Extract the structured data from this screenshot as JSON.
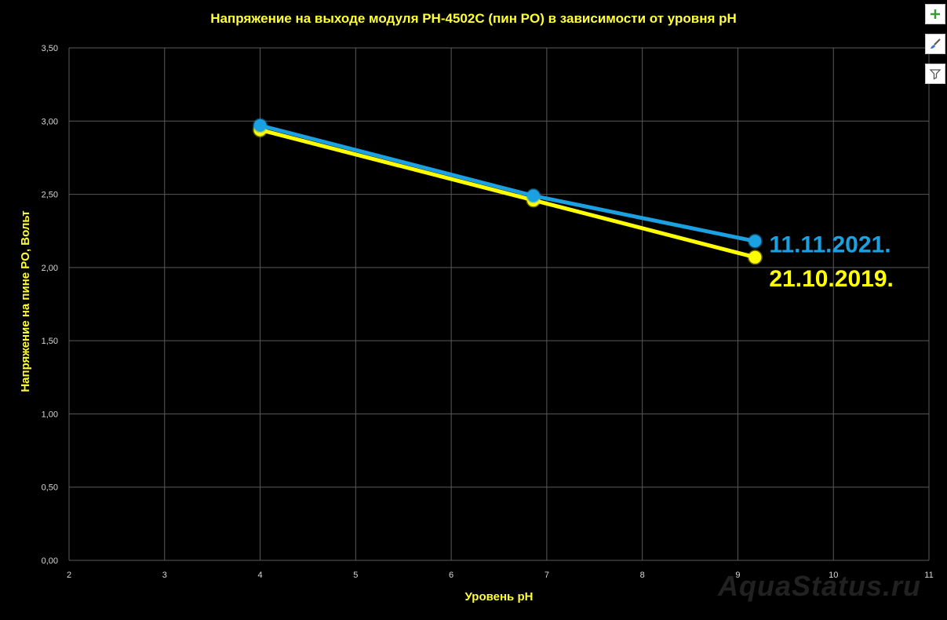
{
  "chart_data": {
    "type": "line",
    "title": "Напряжение на выходе модуля PH-4502C (пин PO) в зависимости от уровня  pH",
    "xlabel": "Уровень pH",
    "ylabel": "Напряжение на пине PO, Вольт",
    "xlim": [
      2,
      11
    ],
    "ylim": [
      0,
      3.5
    ],
    "x_ticks": [
      "2",
      "3",
      "4",
      "5",
      "6",
      "7",
      "8",
      "9",
      "10",
      "11"
    ],
    "y_ticks": [
      "0,00",
      "0,50",
      "1,00",
      "1,50",
      "2,00",
      "2,50",
      "3,00",
      "3,50"
    ],
    "grid": true,
    "series": [
      {
        "name": "21.10.2019.",
        "color": "#ffff00",
        "points": [
          {
            "x": 4.0,
            "y": 2.94
          },
          {
            "x": 6.86,
            "y": 2.46
          },
          {
            "x": 9.18,
            "y": 2.07
          }
        ]
      },
      {
        "name": "11.11.2021.",
        "color": "#1ba1e2",
        "points": [
          {
            "x": 4.0,
            "y": 2.97
          },
          {
            "x": 6.86,
            "y": 2.49
          },
          {
            "x": 9.18,
            "y": 2.18
          }
        ]
      }
    ]
  },
  "toolbar": {
    "add_icon": "plus-icon",
    "style_icon": "brush-icon",
    "filter_icon": "filter-icon"
  },
  "watermark": "AquaStatus.ru"
}
